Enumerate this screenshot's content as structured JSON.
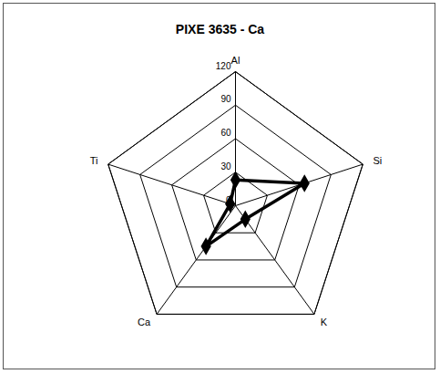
{
  "chart_data": {
    "type": "radar",
    "title": "PIXE 3635 - Ca",
    "categories": [
      "Al",
      "Si",
      "K",
      "Ca",
      "Ti"
    ],
    "values": [
      23,
      65,
      15,
      45,
      5
    ],
    "color": "#000000",
    "marker": "diamond",
    "ylim": [
      0,
      120
    ],
    "yticks": [
      0,
      30,
      60,
      90,
      120
    ],
    "grid": true
  }
}
